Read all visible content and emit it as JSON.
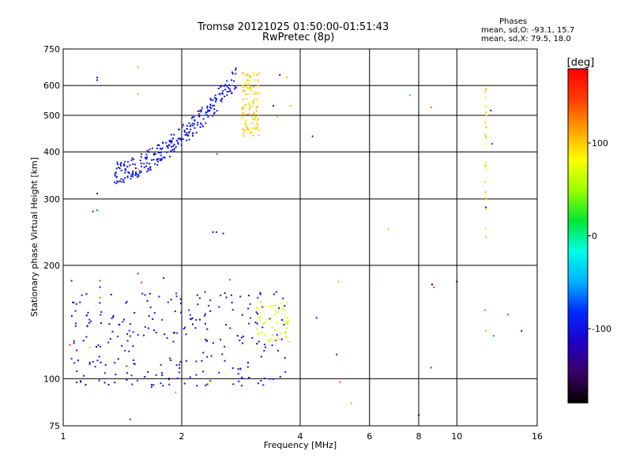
{
  "chart_data": {
    "type": "scatter",
    "title": "Tromsø 20121025 01:50:00-01:51:43",
    "subtitle": "RwPretec (8p)",
    "xlabel": "Frequency [MHz]",
    "ylabel": "Stationary phase Virtual Height [km]",
    "x_scale": "log",
    "y_scale": "log",
    "xlim": [
      1,
      16
    ],
    "ylim": [
      75,
      750
    ],
    "x_ticks": [
      "1",
      "2",
      "4",
      "6",
      "8",
      "10",
      "16"
    ],
    "x_tick_values": [
      1,
      2,
      4,
      6,
      8,
      10,
      16
    ],
    "y_ticks": [
      "75",
      "100",
      "200",
      "300",
      "400",
      "500",
      "600",
      "750"
    ],
    "y_tick_values": [
      75,
      100,
      200,
      300,
      400,
      500,
      600,
      750
    ],
    "grid": true,
    "stats_header": "Phases",
    "stats_line1": "mean, sd,O: -93.1, 15.7",
    "stats_line2": "mean, sd,X:  79.5, 18.0",
    "colorbar": {
      "label": "[deg]",
      "range": [
        -180,
        180
      ],
      "ticks": [
        "100",
        "0",
        "-100"
      ],
      "tick_values": [
        100,
        0,
        -100
      ],
      "colors": [
        "#000000",
        "#3c0064",
        "#1e00c8",
        "#0028ff",
        "#00b4ff",
        "#00ffe6",
        "#00e632",
        "#9bff00",
        "#ffff00",
        "#ffa000",
        "#ff3c00",
        "#ff0000"
      ]
    },
    "clusters": [
      {
        "name": "F-trace O",
        "n": 280,
        "x_range": [
          1.35,
          2.75
        ],
        "y_func": "f_trace",
        "phase": [
          -110,
          -85
        ]
      },
      {
        "name": "F-trace X",
        "n": 110,
        "x_range": [
          2.85,
          3.15
        ],
        "y_range": [
          440,
          650
        ],
        "phase": [
          85,
          110
        ]
      },
      {
        "name": "E-region O",
        "n": 260,
        "x_range": [
          1.05,
          3.7
        ],
        "y_range": [
          95,
          170
        ],
        "phase": [
          -125,
          -80
        ]
      },
      {
        "name": "E-region X",
        "n": 55,
        "x_range": [
          3.1,
          3.75
        ],
        "y_range": [
          125,
          160
        ],
        "phase": [
          55,
          90
        ]
      },
      {
        "name": "vertical 12 MHz",
        "n": 28,
        "x_range": [
          11.8,
          11.9
        ],
        "y_range": [
          210,
          620
        ],
        "phase": [
          85,
          110
        ]
      }
    ],
    "points": [
      {
        "x": 1.22,
        "y": 620,
        "phase": -110
      },
      {
        "x": 1.22,
        "y": 630,
        "phase": -100
      },
      {
        "x": 1.22,
        "y": 310,
        "phase": -95
      },
      {
        "x": 1.19,
        "y": 278,
        "phase": -90
      },
      {
        "x": 1.22,
        "y": 280,
        "phase": -60
      },
      {
        "x": 1.55,
        "y": 670,
        "phase": 110
      },
      {
        "x": 1.55,
        "y": 570,
        "phase": 110
      },
      {
        "x": 1.55,
        "y": 360,
        "phase": 110
      },
      {
        "x": 2.4,
        "y": 245,
        "phase": -110
      },
      {
        "x": 2.45,
        "y": 245,
        "phase": -105
      },
      {
        "x": 2.55,
        "y": 243,
        "phase": -95
      },
      {
        "x": 2.46,
        "y": 395,
        "phase": 160
      },
      {
        "x": 3.55,
        "y": 640,
        "phase": -95
      },
      {
        "x": 3.7,
        "y": 630,
        "phase": 105
      },
      {
        "x": 3.5,
        "y": 495,
        "phase": 100
      },
      {
        "x": 3.78,
        "y": 530,
        "phase": 110
      },
      {
        "x": 3.42,
        "y": 530,
        "phase": -150
      },
      {
        "x": 4.3,
        "y": 440,
        "phase": -95
      },
      {
        "x": 7.6,
        "y": 565,
        "phase": -40
      },
      {
        "x": 8.6,
        "y": 525,
        "phase": 130
      },
      {
        "x": 6.7,
        "y": 250,
        "phase": 110
      },
      {
        "x": 12.3,
        "y": 420,
        "phase": -70
      },
      {
        "x": 12.2,
        "y": 515,
        "phase": -100
      },
      {
        "x": 11.85,
        "y": 285,
        "phase": -95
      },
      {
        "x": 1.05,
        "y": 182,
        "phase": -90
      },
      {
        "x": 1.24,
        "y": 182,
        "phase": 150
      },
      {
        "x": 1.24,
        "y": 175,
        "phase": -100
      },
      {
        "x": 1.24,
        "y": 164,
        "phase": 130
      },
      {
        "x": 1.55,
        "y": 190,
        "phase": -70
      },
      {
        "x": 1.58,
        "y": 180,
        "phase": 150
      },
      {
        "x": 1.8,
        "y": 185,
        "phase": -90
      },
      {
        "x": 2.65,
        "y": 183,
        "phase": -60
      },
      {
        "x": 1.04,
        "y": 123,
        "phase": 160
      },
      {
        "x": 1.17,
        "y": 121,
        "phase": 100
      },
      {
        "x": 1.45,
        "y": 108,
        "phase": 160
      },
      {
        "x": 1.48,
        "y": 78,
        "phase": -75
      },
      {
        "x": 1.93,
        "y": 92,
        "phase": 30
      },
      {
        "x": 2.35,
        "y": 98,
        "phase": 90
      },
      {
        "x": 4.4,
        "y": 145,
        "phase": -95
      },
      {
        "x": 4.95,
        "y": 116,
        "phase": -80
      },
      {
        "x": 5.0,
        "y": 181,
        "phase": 110
      },
      {
        "x": 5.05,
        "y": 98,
        "phase": 160
      },
      {
        "x": 5.4,
        "y": 86,
        "phase": 110
      },
      {
        "x": 6.0,
        "y": 182,
        "phase": 130
      },
      {
        "x": 8.0,
        "y": 80,
        "phase": -140
      },
      {
        "x": 8.65,
        "y": 178,
        "phase": -170
      },
      {
        "x": 8.75,
        "y": 175,
        "phase": 160
      },
      {
        "x": 10.0,
        "y": 181,
        "phase": -170
      },
      {
        "x": 8.6,
        "y": 107,
        "phase": -70
      },
      {
        "x": 11.8,
        "y": 152,
        "phase": 130
      },
      {
        "x": 11.85,
        "y": 134,
        "phase": 110
      },
      {
        "x": 12.4,
        "y": 130,
        "phase": -60
      },
      {
        "x": 13.5,
        "y": 148,
        "phase": 150
      },
      {
        "x": 14.6,
        "y": 134,
        "phase": -110
      }
    ]
  }
}
